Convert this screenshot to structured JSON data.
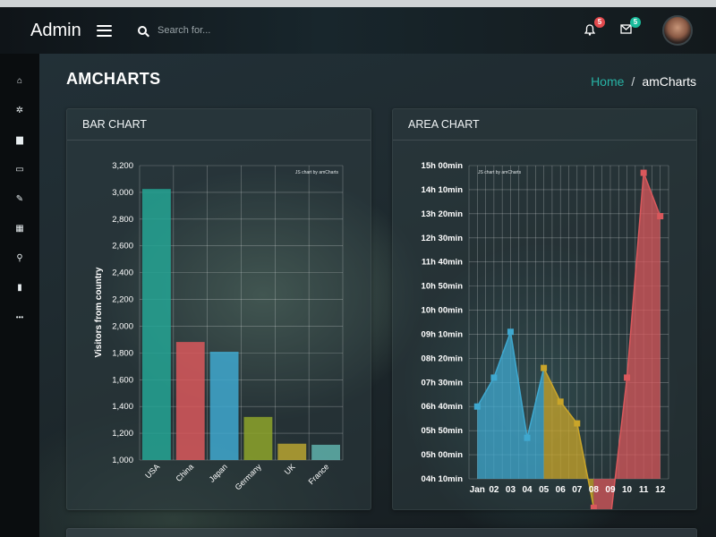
{
  "app": {
    "brand": "Admin"
  },
  "search": {
    "placeholder": "Search for..."
  },
  "notifications": {
    "bell_count": "5",
    "mail_count": "5"
  },
  "sidebar": {
    "items": [
      {
        "icon": "home-icon",
        "glyph": "⌂"
      },
      {
        "icon": "gear-icon",
        "glyph": "✲"
      },
      {
        "icon": "bar-chart-icon",
        "glyph": "▆"
      },
      {
        "icon": "monitor-icon",
        "glyph": "▭"
      },
      {
        "icon": "edit-icon",
        "glyph": "✎"
      },
      {
        "icon": "grid-icon",
        "glyph": "▦"
      },
      {
        "icon": "map-marker-icon",
        "glyph": "⚲"
      },
      {
        "icon": "file-icon",
        "glyph": "▮"
      },
      {
        "icon": "more-icon",
        "glyph": "•••"
      }
    ]
  },
  "page": {
    "title": "AMCHARTS"
  },
  "breadcrumb": {
    "home": "Home",
    "separator": "/",
    "current": "amCharts"
  },
  "panels": {
    "bar_title": "BAR CHART",
    "area_title": "AREA CHART"
  },
  "chart_data": [
    {
      "type": "bar",
      "title": "",
      "credit": "JS chart by amCharts",
      "ylabel": "Visitors from country",
      "xlabel": "",
      "categories": [
        "USA",
        "China",
        "Japan",
        "Germany",
        "UK",
        "France"
      ],
      "values": [
        3025,
        1882,
        1809,
        1322,
        1122,
        1114
      ],
      "colors": [
        "#25a594",
        "#d9585c",
        "#3fa8cf",
        "#8ea52a",
        "#b8a530",
        "#5fb1ab"
      ],
      "ylim": [
        1000,
        3200
      ],
      "yticks": [
        "1,000",
        "1,200",
        "1,400",
        "1,600",
        "1,800",
        "2,000",
        "2,200",
        "2,400",
        "2,600",
        "2,800",
        "3,000",
        "3,200"
      ],
      "grid": true
    },
    {
      "type": "area",
      "title": "",
      "credit": "JS chart by amCharts",
      "categories": [
        "Jan",
        "02",
        "03",
        "04",
        "05",
        "06",
        "07",
        "08",
        "09",
        "10",
        "11",
        "12"
      ],
      "values_minutes": [
        400,
        460,
        555,
        335,
        480,
        410,
        365,
        190,
        165,
        460,
        885,
        795
      ],
      "ylim_minutes": [
        250,
        900
      ],
      "yticks": [
        "04h 10min",
        "05h 00min",
        "05h 50min",
        "06h 40min",
        "07h 30min",
        "08h 20min",
        "09h 10min",
        "10h 00min",
        "10h 50min",
        "11h 40min",
        "12h 30min",
        "13h 20min",
        "14h 10min",
        "15h 00min"
      ],
      "segments": [
        {
          "from": 0,
          "to": 4,
          "color": "#3fa8cf"
        },
        {
          "from": 4,
          "to": 7,
          "color": "#c9a52a"
        },
        {
          "from": 7,
          "to": 11,
          "color": "#d9585c"
        }
      ],
      "grid": true
    }
  ]
}
